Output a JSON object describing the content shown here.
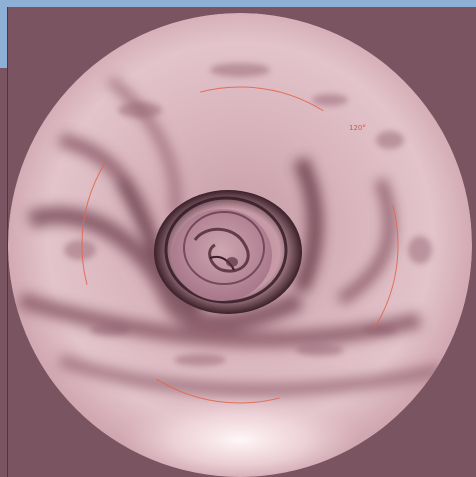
{
  "viewport": {
    "angle_label": "120°",
    "guide_color": "#e4664c",
    "background_color": "#7a5561",
    "header_color": "#8fb0d6"
  }
}
